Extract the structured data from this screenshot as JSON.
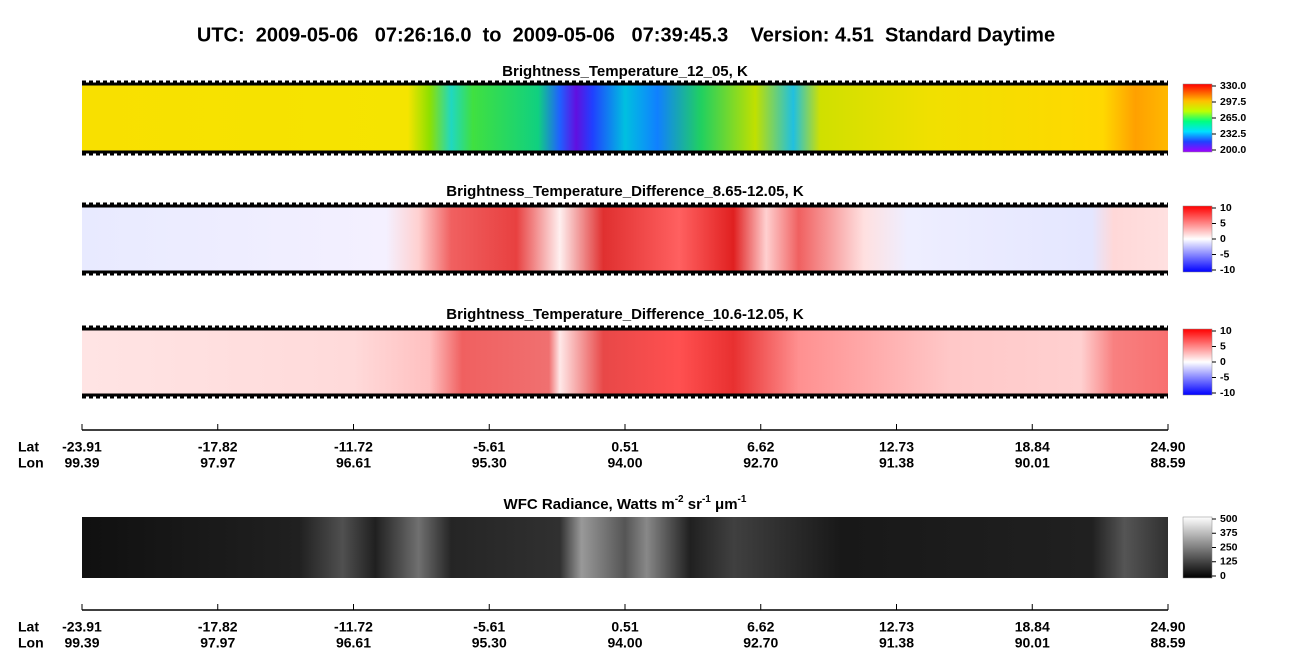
{
  "title": "UTC:  2009-05-06   07:26:16.0  to  2009-05-06   07:39:45.3    Version: 4.51  Standard Daytime",
  "panels": [
    {
      "title": "Brightness_Temperature_12_05, K",
      "colorbar": [
        "330.0",
        "297.5",
        "265.0",
        "232.5",
        "200.0"
      ]
    },
    {
      "title": "Brightness_Temperature_Difference_8.65-12.05, K",
      "colorbar": [
        "10",
        "5",
        "0",
        "-5",
        "-10"
      ]
    },
    {
      "title": "Brightness_Temperature_Difference_10.6-12.05, K",
      "colorbar": [
        "10",
        "5",
        "0",
        "-5",
        "-10"
      ]
    },
    {
      "title_parts": [
        "WFC Radiance, Watts m",
        "-2",
        " sr",
        "-1",
        " μm",
        "-1"
      ],
      "colorbar": [
        "500",
        "375",
        "250",
        "125",
        "0"
      ]
    }
  ],
  "axis": {
    "lat_label": "Lat",
    "lon_label": "Lon",
    "lat": [
      "-23.91",
      "-17.82",
      "-11.72",
      "-5.61",
      "0.51",
      "6.62",
      "12.73",
      "18.84",
      "24.90"
    ],
    "lon": [
      "99.39",
      "97.97",
      "96.61",
      "95.30",
      "94.00",
      "92.70",
      "91.38",
      "90.01",
      "88.59"
    ]
  }
}
